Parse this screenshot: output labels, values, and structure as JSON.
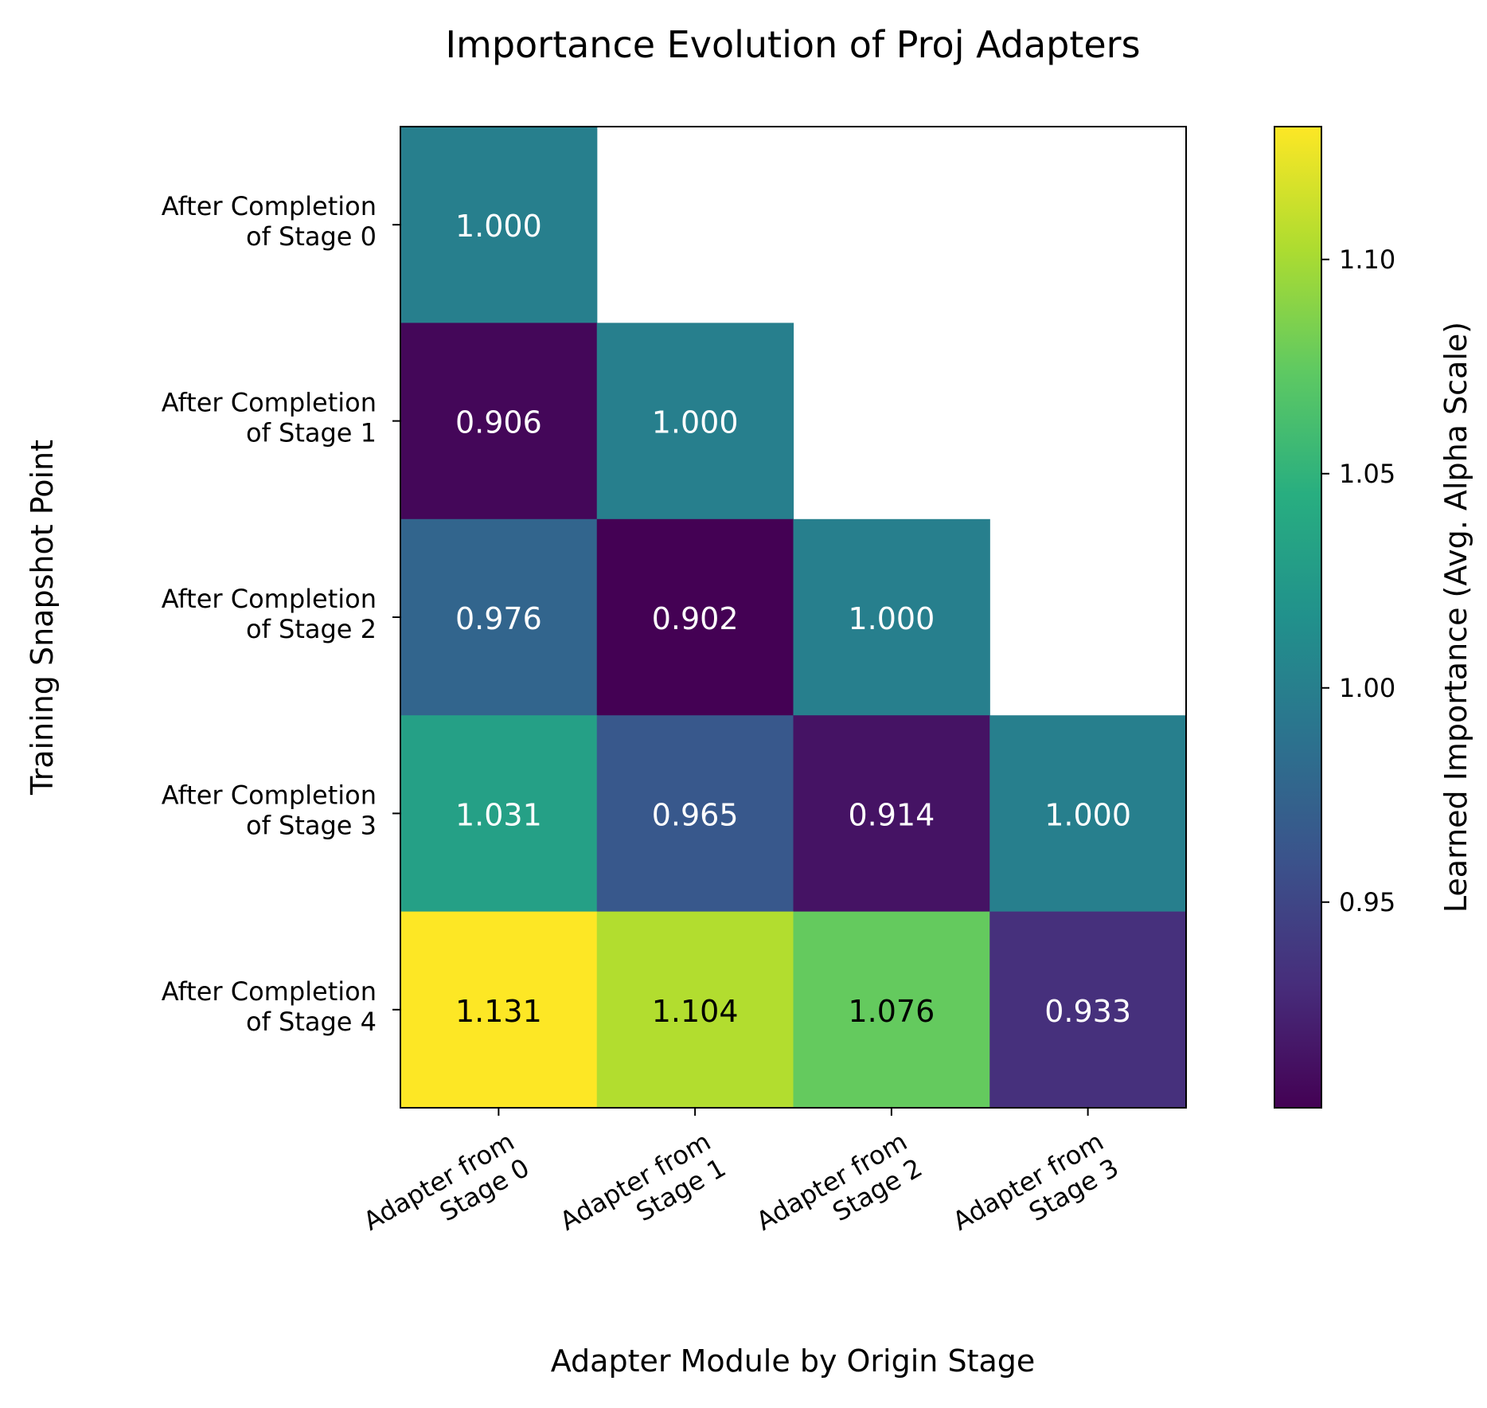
{
  "chart_data": {
    "type": "heatmap",
    "title": "Importance Evolution of Proj Adapters",
    "xlabel": "Adapter Module by Origin Stage",
    "ylabel": "Training Snapshot Point",
    "colorbar_label": "Learned Importance (Avg. Alpha Scale)",
    "colormap": "viridis",
    "x_categories": [
      [
        "Adapter from",
        "Stage 0"
      ],
      [
        "Adapter from",
        "Stage 1"
      ],
      [
        "Adapter from",
        "Stage 2"
      ],
      [
        "Adapter from",
        "Stage 3"
      ]
    ],
    "y_categories": [
      [
        "After Completion",
        "of Stage 0"
      ],
      [
        "After Completion",
        "of Stage 1"
      ],
      [
        "After Completion",
        "of Stage 2"
      ],
      [
        "After Completion",
        "of Stage 3"
      ],
      [
        "After Completion",
        "of Stage 4"
      ]
    ],
    "values": [
      [
        1.0,
        null,
        null,
        null
      ],
      [
        0.906,
        1.0,
        null,
        null
      ],
      [
        0.976,
        0.902,
        1.0,
        null
      ],
      [
        1.031,
        0.965,
        0.914,
        1.0
      ],
      [
        1.131,
        1.104,
        1.076,
        0.933
      ]
    ],
    "value_labels": [
      [
        "1.000",
        null,
        null,
        null
      ],
      [
        "0.906",
        "1.000",
        null,
        null
      ],
      [
        "0.976",
        "0.902",
        "1.000",
        null
      ],
      [
        "1.031",
        "0.965",
        "0.914",
        "1.000"
      ],
      [
        "1.131",
        "1.104",
        "1.076",
        "0.933"
      ]
    ],
    "color_range": [
      0.902,
      1.131
    ],
    "colorbar_ticks": [
      0.95,
      1.0,
      1.05,
      1.1
    ],
    "colorbar_tick_labels": [
      "0.95",
      "1.00",
      "1.05",
      "1.10"
    ]
  }
}
